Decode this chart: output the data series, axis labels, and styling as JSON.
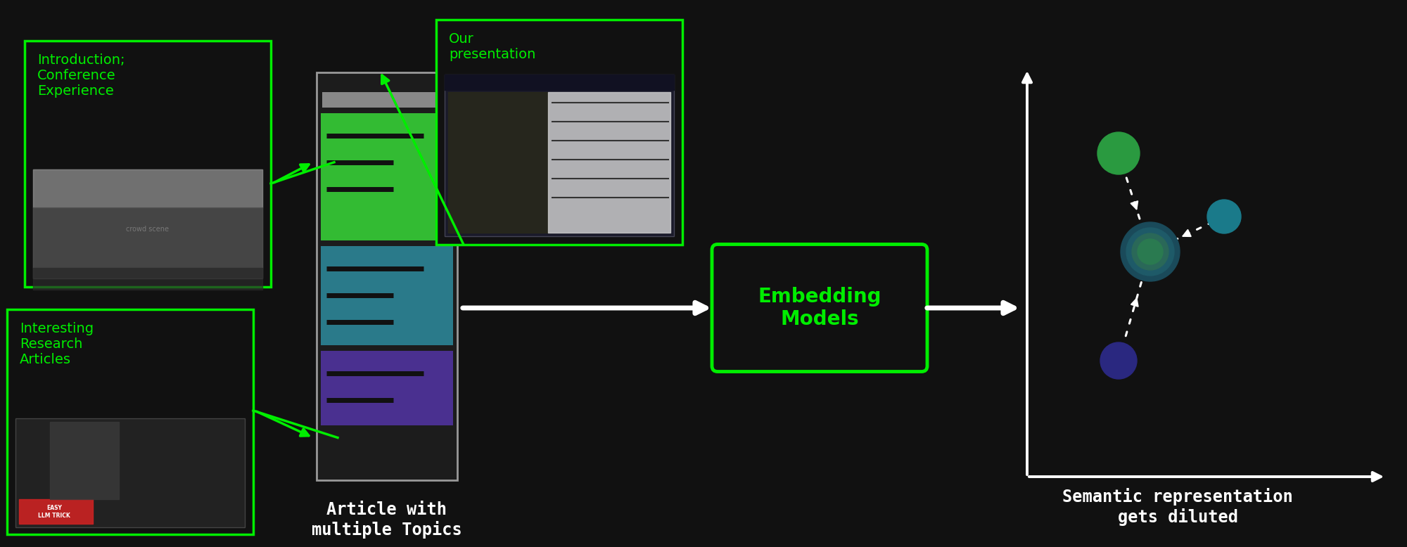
{
  "bg_color": "#111111",
  "green": "#00ee00",
  "white": "#ffffff",
  "dark_gray": "#222222",
  "article_colors": [
    "#33bb33",
    "#2a7a8a",
    "#4a3090"
  ],
  "article_header_color": "#888888",
  "embedding_text": "Embedding\nModels",
  "label1": "Introduction;\nConference\nExperience",
  "label2": "Interesting\nResearch\nArticles",
  "label3": "Our\npresentation",
  "doc_label": "Article with\nmultiple Topics",
  "sem_label": "Semantic representation\ngets diluted",
  "green_dot_color": "#2a9a40",
  "teal_dot_color": "#1a7a8a",
  "blue_dot_color": "#2a2880",
  "center_dot_color1": "#2a5a6a",
  "center_dot_color2": "#1a4a5a"
}
